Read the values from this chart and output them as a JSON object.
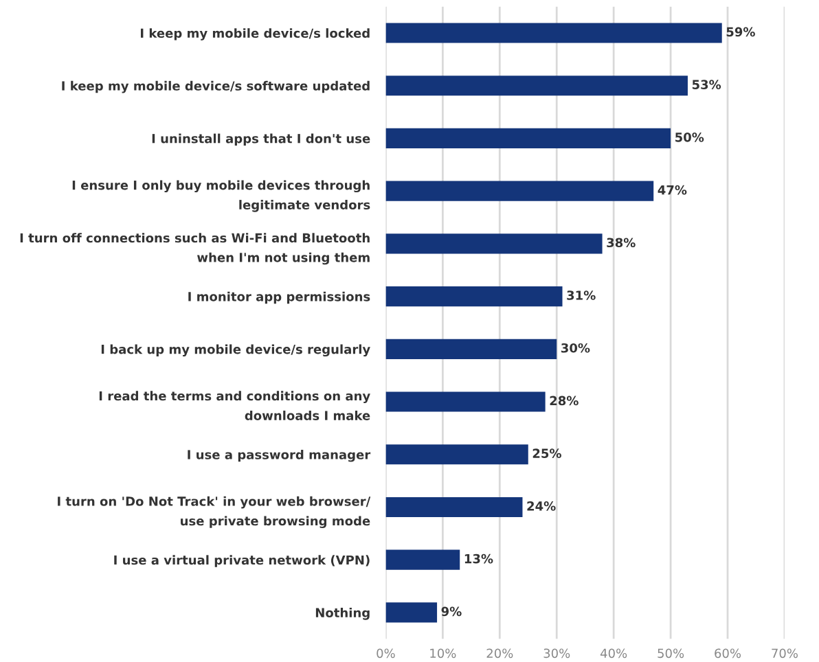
{
  "chart_data": {
    "type": "bar",
    "orientation": "horizontal",
    "categories": [
      "I keep my mobile device/s locked",
      "I keep my mobile device/s software updated",
      "I uninstall apps that I don't use",
      "I ensure I only buy mobile devices through\nlegitimate vendors",
      "I turn off connections such as Wi-Fi and Bluetooth\nwhen I'm not using them",
      "I monitor app permissions",
      "I back up my mobile device/s regularly",
      "I read the terms and conditions on any\ndownloads I make",
      "I use a password manager",
      "I turn on 'Do Not Track' in your web browser/\nuse private browsing mode",
      "I use a virtual private network (VPN)",
      "Nothing"
    ],
    "values": [
      59,
      53,
      50,
      47,
      38,
      31,
      30,
      28,
      25,
      24,
      13,
      9
    ],
    "value_labels": [
      "59%",
      "53%",
      "50%",
      "47%",
      "38%",
      "31%",
      "30%",
      "28%",
      "25%",
      "24%",
      "13%",
      "9%"
    ],
    "color": "#14357a",
    "xlim": [
      0,
      70
    ],
    "xticks": [
      {
        "value": 0,
        "label": "0%"
      },
      {
        "value": 10,
        "label": "10%"
      },
      {
        "value": 20,
        "label": "20%"
      },
      {
        "value": 30,
        "label": "30%"
      },
      {
        "value": 40,
        "label": "40%"
      },
      {
        "value": 50,
        "label": "50%"
      },
      {
        "value": 60,
        "label": "60%"
      },
      {
        "value": 70,
        "label": "70%"
      }
    ],
    "grid": "x"
  }
}
